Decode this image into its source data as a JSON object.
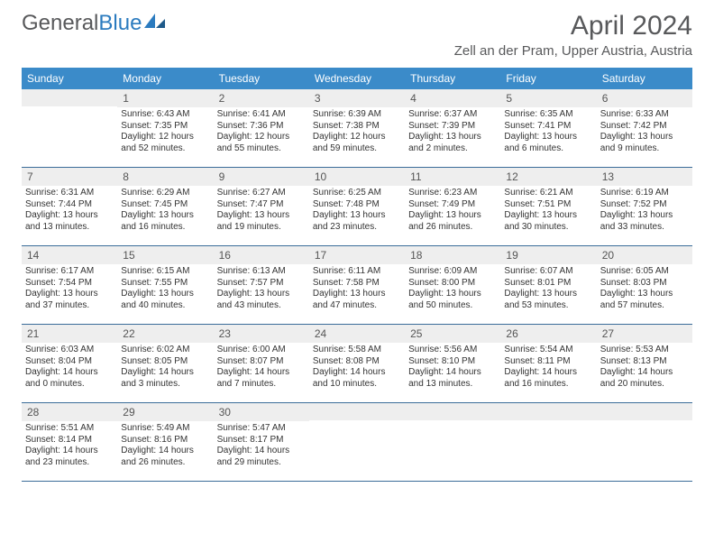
{
  "logo": {
    "text1": "General",
    "text2": "Blue"
  },
  "title": "April 2024",
  "location": "Zell an der Pram, Upper Austria, Austria",
  "colors": {
    "header_bg": "#3b8bc9",
    "header_text": "#ffffff",
    "daynum_bg": "#eeeeee",
    "week_border": "#3b6d99",
    "logo_gray": "#58595b",
    "logo_blue": "#2b7bbf"
  },
  "weekdays": [
    "Sunday",
    "Monday",
    "Tuesday",
    "Wednesday",
    "Thursday",
    "Friday",
    "Saturday"
  ],
  "weeks": [
    [
      {
        "num": "",
        "lines": []
      },
      {
        "num": "1",
        "lines": [
          "Sunrise: 6:43 AM",
          "Sunset: 7:35 PM",
          "Daylight: 12 hours",
          "and 52 minutes."
        ]
      },
      {
        "num": "2",
        "lines": [
          "Sunrise: 6:41 AM",
          "Sunset: 7:36 PM",
          "Daylight: 12 hours",
          "and 55 minutes."
        ]
      },
      {
        "num": "3",
        "lines": [
          "Sunrise: 6:39 AM",
          "Sunset: 7:38 PM",
          "Daylight: 12 hours",
          "and 59 minutes."
        ]
      },
      {
        "num": "4",
        "lines": [
          "Sunrise: 6:37 AM",
          "Sunset: 7:39 PM",
          "Daylight: 13 hours",
          "and 2 minutes."
        ]
      },
      {
        "num": "5",
        "lines": [
          "Sunrise: 6:35 AM",
          "Sunset: 7:41 PM",
          "Daylight: 13 hours",
          "and 6 minutes."
        ]
      },
      {
        "num": "6",
        "lines": [
          "Sunrise: 6:33 AM",
          "Sunset: 7:42 PM",
          "Daylight: 13 hours",
          "and 9 minutes."
        ]
      }
    ],
    [
      {
        "num": "7",
        "lines": [
          "Sunrise: 6:31 AM",
          "Sunset: 7:44 PM",
          "Daylight: 13 hours",
          "and 13 minutes."
        ]
      },
      {
        "num": "8",
        "lines": [
          "Sunrise: 6:29 AM",
          "Sunset: 7:45 PM",
          "Daylight: 13 hours",
          "and 16 minutes."
        ]
      },
      {
        "num": "9",
        "lines": [
          "Sunrise: 6:27 AM",
          "Sunset: 7:47 PM",
          "Daylight: 13 hours",
          "and 19 minutes."
        ]
      },
      {
        "num": "10",
        "lines": [
          "Sunrise: 6:25 AM",
          "Sunset: 7:48 PM",
          "Daylight: 13 hours",
          "and 23 minutes."
        ]
      },
      {
        "num": "11",
        "lines": [
          "Sunrise: 6:23 AM",
          "Sunset: 7:49 PM",
          "Daylight: 13 hours",
          "and 26 minutes."
        ]
      },
      {
        "num": "12",
        "lines": [
          "Sunrise: 6:21 AM",
          "Sunset: 7:51 PM",
          "Daylight: 13 hours",
          "and 30 minutes."
        ]
      },
      {
        "num": "13",
        "lines": [
          "Sunrise: 6:19 AM",
          "Sunset: 7:52 PM",
          "Daylight: 13 hours",
          "and 33 minutes."
        ]
      }
    ],
    [
      {
        "num": "14",
        "lines": [
          "Sunrise: 6:17 AM",
          "Sunset: 7:54 PM",
          "Daylight: 13 hours",
          "and 37 minutes."
        ]
      },
      {
        "num": "15",
        "lines": [
          "Sunrise: 6:15 AM",
          "Sunset: 7:55 PM",
          "Daylight: 13 hours",
          "and 40 minutes."
        ]
      },
      {
        "num": "16",
        "lines": [
          "Sunrise: 6:13 AM",
          "Sunset: 7:57 PM",
          "Daylight: 13 hours",
          "and 43 minutes."
        ]
      },
      {
        "num": "17",
        "lines": [
          "Sunrise: 6:11 AM",
          "Sunset: 7:58 PM",
          "Daylight: 13 hours",
          "and 47 minutes."
        ]
      },
      {
        "num": "18",
        "lines": [
          "Sunrise: 6:09 AM",
          "Sunset: 8:00 PM",
          "Daylight: 13 hours",
          "and 50 minutes."
        ]
      },
      {
        "num": "19",
        "lines": [
          "Sunrise: 6:07 AM",
          "Sunset: 8:01 PM",
          "Daylight: 13 hours",
          "and 53 minutes."
        ]
      },
      {
        "num": "20",
        "lines": [
          "Sunrise: 6:05 AM",
          "Sunset: 8:03 PM",
          "Daylight: 13 hours",
          "and 57 minutes."
        ]
      }
    ],
    [
      {
        "num": "21",
        "lines": [
          "Sunrise: 6:03 AM",
          "Sunset: 8:04 PM",
          "Daylight: 14 hours",
          "and 0 minutes."
        ]
      },
      {
        "num": "22",
        "lines": [
          "Sunrise: 6:02 AM",
          "Sunset: 8:05 PM",
          "Daylight: 14 hours",
          "and 3 minutes."
        ]
      },
      {
        "num": "23",
        "lines": [
          "Sunrise: 6:00 AM",
          "Sunset: 8:07 PM",
          "Daylight: 14 hours",
          "and 7 minutes."
        ]
      },
      {
        "num": "24",
        "lines": [
          "Sunrise: 5:58 AM",
          "Sunset: 8:08 PM",
          "Daylight: 14 hours",
          "and 10 minutes."
        ]
      },
      {
        "num": "25",
        "lines": [
          "Sunrise: 5:56 AM",
          "Sunset: 8:10 PM",
          "Daylight: 14 hours",
          "and 13 minutes."
        ]
      },
      {
        "num": "26",
        "lines": [
          "Sunrise: 5:54 AM",
          "Sunset: 8:11 PM",
          "Daylight: 14 hours",
          "and 16 minutes."
        ]
      },
      {
        "num": "27",
        "lines": [
          "Sunrise: 5:53 AM",
          "Sunset: 8:13 PM",
          "Daylight: 14 hours",
          "and 20 minutes."
        ]
      }
    ],
    [
      {
        "num": "28",
        "lines": [
          "Sunrise: 5:51 AM",
          "Sunset: 8:14 PM",
          "Daylight: 14 hours",
          "and 23 minutes."
        ]
      },
      {
        "num": "29",
        "lines": [
          "Sunrise: 5:49 AM",
          "Sunset: 8:16 PM",
          "Daylight: 14 hours",
          "and 26 minutes."
        ]
      },
      {
        "num": "30",
        "lines": [
          "Sunrise: 5:47 AM",
          "Sunset: 8:17 PM",
          "Daylight: 14 hours",
          "and 29 minutes."
        ]
      },
      {
        "num": "",
        "lines": []
      },
      {
        "num": "",
        "lines": []
      },
      {
        "num": "",
        "lines": []
      },
      {
        "num": "",
        "lines": []
      }
    ]
  ]
}
